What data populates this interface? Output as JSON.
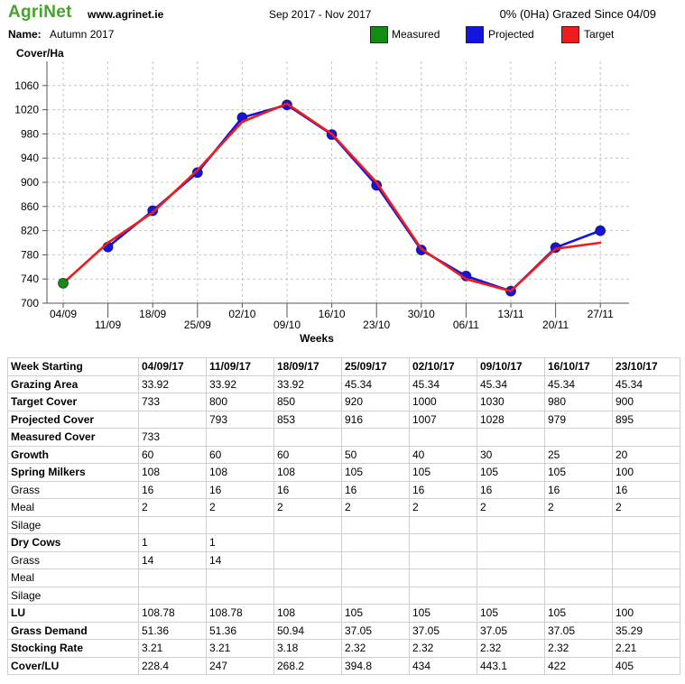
{
  "header": {
    "logo": "AgriNet",
    "website": "www.agrinet.ie",
    "period": "Sep 2017 - Nov 2017",
    "grazed_status": "0% (0Ha) Grazed Since 04/09"
  },
  "plan": {
    "name_label": "Name:",
    "name": "Autumn 2017"
  },
  "chart_data": {
    "type": "line",
    "ylabel": "Cover/Ha",
    "xlabel": "Weeks",
    "categories": [
      "04/09",
      "11/09",
      "18/09",
      "25/09",
      "02/10",
      "09/10",
      "16/10",
      "23/10",
      "30/10",
      "06/11",
      "13/11",
      "20/11",
      "27/11"
    ],
    "yticks": [
      700,
      740,
      780,
      820,
      860,
      900,
      940,
      980,
      1020,
      1060
    ],
    "ylim": [
      700,
      1100
    ],
    "grid": true,
    "legend": "top",
    "series": [
      {
        "name": "Measured",
        "color": "#148c14",
        "values": [
          733,
          null,
          null,
          null,
          null,
          null,
          null,
          null,
          null,
          null,
          null,
          null,
          null
        ]
      },
      {
        "name": "Projected",
        "color": "#1414e0",
        "values": [
          null,
          793,
          853,
          916,
          1007,
          1028,
          979,
          895,
          788,
          745,
          720,
          792,
          820
        ]
      },
      {
        "name": "Target",
        "color": "#ee1c1c",
        "values": [
          733,
          800,
          850,
          920,
          1000,
          1030,
          980,
          900,
          790,
          740,
          720,
          790,
          800
        ]
      }
    ]
  },
  "table": {
    "header": [
      "Week Starting",
      "04/09/17",
      "11/09/17",
      "18/09/17",
      "25/09/17",
      "02/10/17",
      "09/10/17",
      "16/10/17",
      "23/10/17"
    ],
    "rows": [
      {
        "label": "Grazing Area",
        "values": [
          "33.92",
          "33.92",
          "33.92",
          "45.34",
          "45.34",
          "45.34",
          "45.34",
          "45.34"
        ]
      },
      {
        "label": "Target Cover",
        "values": [
          "733",
          "800",
          "850",
          "920",
          "1000",
          "1030",
          "980",
          "900"
        ]
      },
      {
        "label": "Projected Cover",
        "values": [
          "",
          "793",
          "853",
          "916",
          "1007",
          "1028",
          "979",
          "895"
        ]
      },
      {
        "label": "Measured Cover",
        "values": [
          "733",
          "",
          "",
          "",
          "",
          "",
          "",
          ""
        ]
      },
      {
        "label": "Growth",
        "values": [
          "60",
          "60",
          "60",
          "50",
          "40",
          "30",
          "25",
          "20"
        ]
      },
      {
        "label": "Spring Milkers",
        "values": [
          "108",
          "108",
          "108",
          "105",
          "105",
          "105",
          "105",
          "100"
        ],
        "sub_rows": [
          {
            "label": "Grass",
            "values": [
              "16",
              "16",
              "16",
              "16",
              "16",
              "16",
              "16",
              "16"
            ]
          },
          {
            "label": "Meal",
            "values": [
              "2",
              "2",
              "2",
              "2",
              "2",
              "2",
              "2",
              "2"
            ]
          },
          {
            "label": "Silage",
            "values": [
              "",
              "",
              "",
              "",
              "",
              "",
              "",
              ""
            ]
          }
        ]
      },
      {
        "label": "Dry Cows",
        "values": [
          "1",
          "1",
          "",
          "",
          "",
          "",
          "",
          ""
        ],
        "sub_rows": [
          {
            "label": "Grass",
            "values": [
              "14",
              "14",
              "",
              "",
              "",
              "",
              "",
              ""
            ]
          },
          {
            "label": "Meal",
            "values": [
              "",
              "",
              "",
              "",
              "",
              "",
              "",
              ""
            ]
          },
          {
            "label": "Silage",
            "values": [
              "",
              "",
              "",
              "",
              "",
              "",
              "",
              ""
            ]
          }
        ]
      },
      {
        "label": "LU",
        "values": [
          "108.78",
          "108.78",
          "108",
          "105",
          "105",
          "105",
          "105",
          "100"
        ]
      },
      {
        "label": "Grass Demand",
        "values": [
          "51.36",
          "51.36",
          "50.94",
          "37.05",
          "37.05",
          "37.05",
          "37.05",
          "35.29"
        ]
      },
      {
        "label": "Stocking Rate",
        "values": [
          "3.21",
          "3.21",
          "3.18",
          "2.32",
          "2.32",
          "2.32",
          "2.32",
          "2.21"
        ]
      },
      {
        "label": "Cover/LU",
        "values": [
          "228.4",
          "247",
          "268.2",
          "394.8",
          "434",
          "443.1",
          "422",
          "405"
        ]
      }
    ]
  }
}
